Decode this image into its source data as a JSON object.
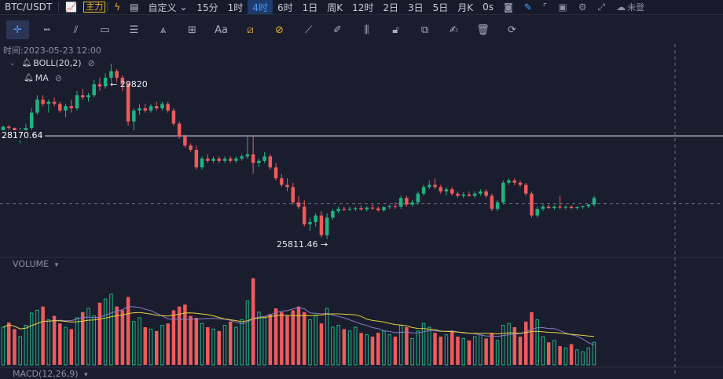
{
  "topbar": {
    "pair": "BTC/USDT",
    "main_label": "主力",
    "custom_label": "自定义",
    "intervals": [
      "15分",
      "1时",
      "4时",
      "6时",
      "1日",
      "周K",
      "12时",
      "2日",
      "3日",
      "5日",
      "月K",
      "0s"
    ],
    "active_interval": "4时",
    "status_text": "未登"
  },
  "toolbar": {
    "text_tool_label": "Aa"
  },
  "chart": {
    "time_text": "时间:2023-05-23 12:00",
    "indicators": [
      {
        "name": "BOLL(20,2)"
      },
      {
        "name": "MA"
      }
    ],
    "high_label": "29820",
    "low_label": "25811.46",
    "level_label": "28170.64",
    "volume_title": "VOLUME",
    "macd_title": "MACD(12,26,9)",
    "colors": {
      "up": "#1fb482",
      "down": "#ee5b5b",
      "ma_vol": "#e7d13a",
      "ma_vol2": "#8b7bc9"
    }
  },
  "chart_data": {
    "type": "candlestick",
    "title": "",
    "price_range": [
      25500,
      30200
    ],
    "horizontal_level": 28170.64,
    "high_marker": 29820,
    "low_marker": 25811.46,
    "candles": [
      [
        28300,
        28400,
        28150,
        28380
      ],
      [
        28380,
        28420,
        28300,
        28350
      ],
      [
        28350,
        28360,
        28100,
        28150
      ],
      [
        28150,
        28350,
        28000,
        28300
      ],
      [
        28300,
        28450,
        28200,
        28350
      ],
      [
        28350,
        28800,
        28300,
        28700
      ],
      [
        28700,
        29100,
        28650,
        29000
      ],
      [
        29000,
        29100,
        28850,
        28900
      ],
      [
        28900,
        29000,
        28700,
        28950
      ],
      [
        28950,
        29050,
        28850,
        28900
      ],
      [
        28900,
        28950,
        28700,
        28750
      ],
      [
        28750,
        28900,
        28600,
        28850
      ],
      [
        28850,
        29000,
        28700,
        28800
      ],
      [
        28800,
        29200,
        28750,
        29100
      ],
      [
        29100,
        29250,
        29000,
        29050
      ],
      [
        29050,
        29150,
        28950,
        29100
      ],
      [
        29100,
        29450,
        29050,
        29350
      ],
      [
        29350,
        29500,
        29200,
        29300
      ],
      [
        29300,
        29600,
        29250,
        29500
      ],
      [
        29500,
        29820,
        29400,
        29650
      ],
      [
        29650,
        29700,
        29400,
        29500
      ],
      [
        29500,
        29550,
        29200,
        29350
      ],
      [
        29350,
        29400,
        28400,
        28500
      ],
      [
        28500,
        28800,
        28300,
        28750
      ],
      [
        28750,
        28900,
        28650,
        28800
      ],
      [
        28800,
        28900,
        28700,
        28750
      ],
      [
        28750,
        28900,
        28700,
        28850
      ],
      [
        28850,
        28950,
        28750,
        28800
      ],
      [
        28800,
        28950,
        28750,
        28900
      ],
      [
        28900,
        28950,
        28700,
        28750
      ],
      [
        28750,
        28800,
        28400,
        28450
      ],
      [
        28450,
        28500,
        28100,
        28150
      ],
      [
        28150,
        28200,
        27900,
        27950
      ],
      [
        27950,
        28000,
        27800,
        27850
      ],
      [
        27850,
        27950,
        27400,
        27450
      ],
      [
        27450,
        27700,
        27400,
        27650
      ],
      [
        27650,
        27750,
        27550,
        27600
      ],
      [
        27600,
        27700,
        27550,
        27650
      ],
      [
        27650,
        27700,
        27550,
        27600
      ],
      [
        27600,
        27700,
        27550,
        27650
      ],
      [
        27650,
        27700,
        27550,
        27600
      ],
      [
        27600,
        27700,
        27550,
        27650
      ],
      [
        27650,
        27750,
        27600,
        27700
      ],
      [
        27700,
        28150,
        27650,
        27750
      ],
      [
        27750,
        28170,
        27300,
        27550
      ],
      [
        27550,
        27650,
        27450,
        27600
      ],
      [
        27600,
        27800,
        27550,
        27700
      ],
      [
        27700,
        27750,
        27400,
        27450
      ],
      [
        27450,
        27550,
        27150,
        27200
      ],
      [
        27200,
        27300,
        27000,
        27050
      ],
      [
        27050,
        27200,
        26900,
        27000
      ],
      [
        27000,
        27100,
        26600,
        26650
      ],
      [
        26650,
        26800,
        26500,
        26550
      ],
      [
        26550,
        26700,
        26100,
        26150
      ],
      [
        26150,
        26300,
        26000,
        26200
      ],
      [
        26200,
        26400,
        26100,
        26350
      ],
      [
        26350,
        26450,
        25850,
        25900
      ],
      [
        25900,
        26400,
        25811,
        26300
      ],
      [
        26300,
        26500,
        26250,
        26450
      ],
      [
        26450,
        26550,
        26400,
        26500
      ],
      [
        26500,
        26550,
        26450,
        26480
      ],
      [
        26480,
        26550,
        26450,
        26500
      ],
      [
        26500,
        26550,
        26450,
        26520
      ],
      [
        26520,
        26580,
        26460,
        26490
      ],
      [
        26490,
        26560,
        26440,
        26530
      ],
      [
        26530,
        26600,
        26480,
        26510
      ],
      [
        26510,
        26560,
        26440,
        26470
      ],
      [
        26470,
        26560,
        26440,
        26540
      ],
      [
        26540,
        26600,
        26500,
        26560
      ],
      [
        26560,
        26650,
        26500,
        26550
      ],
      [
        26550,
        26800,
        26500,
        26750
      ],
      [
        26750,
        26800,
        26550,
        26600
      ],
      [
        26600,
        26700,
        26550,
        26650
      ],
      [
        26650,
        26900,
        26600,
        26850
      ],
      [
        26850,
        27050,
        26800,
        27000
      ],
      [
        27000,
        27150,
        26950,
        27050
      ],
      [
        27050,
        27200,
        26950,
        27000
      ],
      [
        27000,
        27050,
        26850,
        26900
      ],
      [
        26900,
        27000,
        26800,
        26950
      ],
      [
        26950,
        27000,
        26800,
        26850
      ],
      [
        26850,
        26900,
        26750,
        26800
      ],
      [
        26800,
        26880,
        26750,
        26830
      ],
      [
        26830,
        26900,
        26780,
        26800
      ],
      [
        26800,
        26900,
        26750,
        26850
      ],
      [
        26850,
        26950,
        26800,
        26900
      ],
      [
        26900,
        26950,
        26750,
        26800
      ],
      [
        26800,
        26850,
        26450,
        26500
      ],
      [
        26500,
        26700,
        26450,
        26650
      ],
      [
        26650,
        27150,
        26600,
        27100
      ],
      [
        27100,
        27200,
        27050,
        27150
      ],
      [
        27150,
        27200,
        27050,
        27100
      ],
      [
        27100,
        27150,
        27000,
        27050
      ],
      [
        27050,
        27100,
        26800,
        26850
      ],
      [
        26850,
        26900,
        26300,
        26350
      ],
      [
        26350,
        26550,
        26300,
        26500
      ],
      [
        26500,
        26600,
        26450,
        26550
      ],
      [
        26550,
        26600,
        26500,
        26520
      ],
      [
        26520,
        26580,
        26480,
        26550
      ],
      [
        26550,
        26800,
        26500,
        26530
      ],
      [
        26530,
        26580,
        26480,
        26550
      ],
      [
        26550,
        26580,
        26500,
        26520
      ],
      [
        26520,
        26560,
        26480,
        26540
      ],
      [
        26540,
        26580,
        26500,
        26560
      ],
      [
        26560,
        26620,
        26520,
        26600
      ],
      [
        26600,
        26800,
        26550,
        26750
      ]
    ],
    "volumes": [
      40,
      45,
      38,
      30,
      42,
      55,
      58,
      62,
      48,
      52,
      44,
      40,
      38,
      50,
      56,
      60,
      52,
      66,
      70,
      75,
      62,
      58,
      72,
      46,
      50,
      40,
      38,
      36,
      42,
      44,
      58,
      62,
      64,
      52,
      50,
      44,
      40,
      38,
      36,
      42,
      46,
      40,
      48,
      68,
      92,
      56,
      50,
      54,
      60,
      56,
      52,
      58,
      62,
      56,
      48,
      52,
      44,
      60,
      40,
      42,
      38,
      36,
      40,
      34,
      32,
      30,
      34,
      36,
      32,
      30,
      42,
      40,
      28,
      36,
      44,
      40,
      34,
      30,
      32,
      36,
      30,
      28,
      26,
      30,
      32,
      28,
      34,
      26,
      42,
      44,
      40,
      30,
      46,
      56,
      48,
      30,
      24,
      26,
      20,
      18,
      22,
      16,
      14,
      18,
      24
    ],
    "vol_range": [
      0,
      100
    ]
  }
}
